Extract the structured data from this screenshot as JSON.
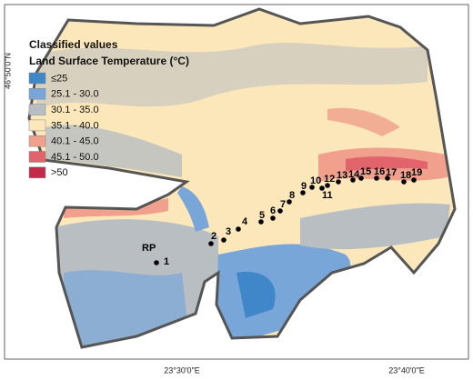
{
  "legend": {
    "title": [
      "Classified values",
      "Land Surface Temperature (°C)"
    ],
    "items": [
      {
        "label": "≤25",
        "color": "#3f87c9"
      },
      {
        "label": "25.1 - 30.0",
        "color": "#78a6d9"
      },
      {
        "label": "30.1 - 35.0",
        "color": "#b9bec3"
      },
      {
        "label": "35.1 - 40.0",
        "color": "#fbe7b9"
      },
      {
        "label": "40.1 - 45.0",
        "color": "#f0a08c"
      },
      {
        "label": "45.1 - 50.0",
        "color": "#e1636b"
      },
      {
        "label": ">50",
        "color": "#c22a4a"
      }
    ]
  },
  "axes": {
    "latitude": "46°50'0\"N",
    "longitude": [
      "23°30'0\"E",
      "23°40'0\"E"
    ]
  },
  "points": [
    "RP",
    "1",
    "2",
    "3",
    "4",
    "5",
    "6",
    "7",
    "8",
    "9",
    "10",
    "11",
    "12",
    "13",
    "14",
    "15",
    "16",
    "17",
    "18",
    "19"
  ]
}
